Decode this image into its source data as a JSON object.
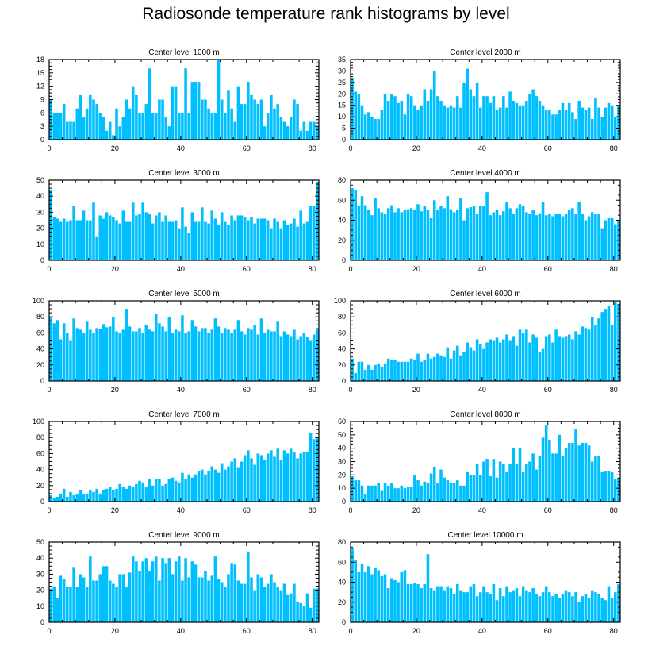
{
  "title": "Radiosonde temperature rank histograms by level",
  "colors": {
    "bar": "#00bfff",
    "axis": "#000000",
    "background": "#ffffff"
  },
  "chart_data": [
    {
      "type": "bar",
      "title": "Center level 1000 m",
      "xlim": [
        0,
        82
      ],
      "ylim": [
        0,
        18
      ],
      "xticks": [
        0,
        20,
        40,
        60,
        80
      ],
      "yticks": [
        0,
        3,
        6,
        9,
        12,
        15,
        18
      ],
      "categories_start": 1,
      "values": [
        9,
        6,
        6,
        6,
        8,
        4,
        4,
        4,
        7,
        10,
        5,
        7,
        10,
        9,
        8,
        6,
        5,
        2,
        4,
        1,
        7,
        3,
        5,
        9,
        7,
        12,
        10,
        6,
        6,
        8,
        16,
        6,
        6,
        9,
        9,
        5,
        3,
        12,
        12,
        6,
        6,
        16,
        6,
        13,
        13,
        13,
        9,
        9,
        7,
        6,
        6,
        18,
        9,
        6,
        11,
        7,
        4,
        12,
        8,
        8,
        13,
        10,
        9,
        8,
        9,
        3,
        6,
        10,
        7,
        8,
        5,
        4,
        3,
        5,
        9,
        8,
        2,
        4,
        2,
        4,
        4,
        3
      ]
    },
    {
      "type": "bar",
      "title": "Center level 2000 m",
      "xlim": [
        0,
        82
      ],
      "ylim": [
        0,
        35
      ],
      "xticks": [
        0,
        20,
        40,
        60,
        80
      ],
      "yticks": [
        0,
        5,
        10,
        15,
        20,
        25,
        30,
        35
      ],
      "categories_start": 1,
      "values": [
        27,
        21,
        20,
        15,
        11,
        12,
        10,
        9,
        9,
        13,
        20,
        17,
        20,
        19,
        16,
        17,
        11,
        20,
        19,
        15,
        13,
        15,
        22,
        17,
        22,
        30,
        19,
        17,
        15,
        14,
        15,
        14,
        19,
        14,
        25,
        31,
        22,
        19,
        25,
        14,
        19,
        19,
        16,
        19,
        13,
        14,
        19,
        14,
        21,
        17,
        16,
        15,
        15,
        17,
        20,
        22,
        19,
        17,
        15,
        13,
        13,
        11,
        11,
        13,
        16,
        13,
        16,
        12,
        9,
        17,
        14,
        13,
        14,
        9,
        18,
        14,
        10,
        14,
        16,
        15,
        10,
        15
      ]
    },
    {
      "type": "bar",
      "title": "Center level 3000 m",
      "xlim": [
        0,
        82
      ],
      "ylim": [
        0,
        50
      ],
      "xticks": [
        0,
        20,
        40,
        60,
        80
      ],
      "yticks": [
        0,
        10,
        20,
        30,
        40,
        50
      ],
      "categories_start": 1,
      "values": [
        44,
        27,
        26,
        24,
        26,
        24,
        25,
        34,
        25,
        25,
        31,
        25,
        25,
        36,
        15,
        28,
        26,
        30,
        28,
        27,
        25,
        23,
        31,
        24,
        24,
        36,
        28,
        29,
        36,
        30,
        29,
        23,
        28,
        30,
        24,
        28,
        24,
        24,
        25,
        20,
        33,
        21,
        17,
        30,
        24,
        24,
        33,
        24,
        23,
        31,
        26,
        22,
        30,
        24,
        22,
        28,
        25,
        28,
        28,
        27,
        25,
        27,
        23,
        26,
        26,
        26,
        25,
        20,
        26,
        24,
        20,
        25,
        22,
        23,
        26,
        21,
        31,
        23,
        24,
        34,
        34,
        49
      ]
    },
    {
      "type": "bar",
      "title": "Center level 4000 m",
      "xlim": [
        0,
        82
      ],
      "ylim": [
        0,
        80
      ],
      "xticks": [
        0,
        20,
        40,
        60,
        80
      ],
      "yticks": [
        0,
        20,
        40,
        60,
        80
      ],
      "categories_start": 1,
      "values": [
        72,
        70,
        54,
        64,
        55,
        50,
        45,
        62,
        52,
        48,
        46,
        52,
        55,
        48,
        52,
        48,
        50,
        51,
        52,
        50,
        56,
        49,
        54,
        50,
        42,
        60,
        50,
        54,
        52,
        64,
        51,
        48,
        50,
        62,
        40,
        52,
        53,
        54,
        46,
        54,
        54,
        68,
        45,
        48,
        50,
        45,
        49,
        58,
        52,
        46,
        52,
        56,
        54,
        48,
        46,
        50,
        45,
        47,
        58,
        45,
        46,
        44,
        46,
        46,
        44,
        46,
        50,
        52,
        46,
        58,
        46,
        40,
        44,
        48,
        46,
        46,
        32,
        40,
        42,
        42,
        36,
        39
      ]
    },
    {
      "type": "bar",
      "title": "Center level 5000 m",
      "xlim": [
        0,
        82
      ],
      "ylim": [
        0,
        100
      ],
      "xticks": [
        0,
        20,
        40,
        60,
        80
      ],
      "yticks": [
        0,
        20,
        40,
        60,
        80,
        100
      ],
      "categories_start": 1,
      "values": [
        80,
        72,
        76,
        52,
        72,
        60,
        50,
        78,
        66,
        64,
        60,
        74,
        64,
        60,
        66,
        65,
        71,
        67,
        68,
        80,
        62,
        60,
        64,
        90,
        68,
        62,
        62,
        66,
        60,
        70,
        64,
        62,
        84,
        72,
        68,
        62,
        80,
        60,
        64,
        62,
        82,
        60,
        62,
        76,
        68,
        62,
        66,
        66,
        60,
        64,
        78,
        68,
        60,
        66,
        64,
        60,
        64,
        76,
        62,
        58,
        66,
        64,
        70,
        58,
        78,
        60,
        64,
        62,
        62,
        74,
        56,
        62,
        58,
        56,
        64,
        52,
        56,
        60,
        55,
        50,
        58,
        66
      ]
    },
    {
      "type": "bar",
      "title": "Center level 6000 m",
      "xlim": [
        0,
        82
      ],
      "ylim": [
        0,
        100
      ],
      "xticks": [
        0,
        20,
        40,
        60,
        80
      ],
      "yticks": [
        0,
        20,
        40,
        60,
        80,
        100
      ],
      "categories_start": 1,
      "values": [
        28,
        10,
        24,
        24,
        14,
        20,
        14,
        20,
        22,
        18,
        22,
        28,
        26,
        26,
        24,
        24,
        24,
        24,
        28,
        26,
        34,
        24,
        26,
        34,
        28,
        30,
        34,
        32,
        30,
        42,
        28,
        38,
        44,
        32,
        36,
        48,
        42,
        38,
        52,
        46,
        40,
        48,
        52,
        50,
        54,
        48,
        52,
        58,
        50,
        56,
        44,
        64,
        60,
        64,
        48,
        58,
        54,
        36,
        40,
        56,
        58,
        48,
        64,
        56,
        54,
        56,
        58,
        52,
        62,
        58,
        68,
        66,
        64,
        80,
        70,
        78,
        86,
        90,
        94,
        70,
        98,
        96
      ]
    },
    {
      "type": "bar",
      "title": "Center level 7000 m",
      "xlim": [
        0,
        82
      ],
      "ylim": [
        0,
        100
      ],
      "xticks": [
        0,
        20,
        40,
        60,
        80
      ],
      "yticks": [
        0,
        20,
        40,
        60,
        80,
        100
      ],
      "categories_start": 1,
      "values": [
        8,
        4,
        6,
        10,
        16,
        6,
        12,
        8,
        10,
        14,
        10,
        10,
        14,
        12,
        16,
        10,
        14,
        16,
        18,
        14,
        16,
        22,
        18,
        16,
        20,
        18,
        22,
        26,
        24,
        18,
        28,
        20,
        28,
        28,
        20,
        22,
        28,
        30,
        26,
        24,
        36,
        28,
        34,
        30,
        34,
        38,
        40,
        34,
        38,
        44,
        40,
        36,
        48,
        40,
        44,
        50,
        54,
        42,
        50,
        58,
        64,
        54,
        46,
        60,
        58,
        52,
        60,
        64,
        56,
        66,
        52,
        64,
        60,
        66,
        62,
        54,
        60,
        62,
        62,
        86,
        78,
        80
      ]
    },
    {
      "type": "bar",
      "title": "Center level 8000 m",
      "xlim": [
        0,
        82
      ],
      "ylim": [
        0,
        60
      ],
      "xticks": [
        0,
        20,
        40,
        60,
        80
      ],
      "yticks": [
        0,
        10,
        20,
        30,
        40,
        50,
        60
      ],
      "categories_start": 1,
      "values": [
        19,
        16,
        16,
        12,
        6,
        12,
        12,
        12,
        14,
        8,
        14,
        12,
        14,
        10,
        10,
        12,
        10,
        11,
        11,
        20,
        16,
        12,
        15,
        14,
        21,
        26,
        14,
        24,
        18,
        16,
        14,
        14,
        16,
        12,
        12,
        22,
        20,
        20,
        28,
        20,
        30,
        32,
        19,
        32,
        18,
        30,
        28,
        22,
        28,
        40,
        28,
        40,
        22,
        28,
        30,
        36,
        24,
        34,
        48,
        57,
        46,
        36,
        36,
        50,
        34,
        40,
        44,
        44,
        54,
        42,
        44,
        44,
        42,
        30,
        34,
        34,
        22,
        23,
        23,
        22,
        17,
        18
      ]
    },
    {
      "type": "bar",
      "title": "Center level 9000 m",
      "xlim": [
        0,
        82
      ],
      "ylim": [
        0,
        50
      ],
      "xticks": [
        0,
        20,
        40,
        60,
        80
      ],
      "yticks": [
        0,
        10,
        20,
        30,
        40,
        50
      ],
      "categories_start": 1,
      "values": [
        21,
        22,
        15,
        29,
        27,
        22,
        22,
        34,
        22,
        30,
        28,
        22,
        41,
        26,
        26,
        30,
        35,
        35,
        26,
        24,
        22,
        30,
        30,
        22,
        31,
        41,
        38,
        32,
        38,
        40,
        32,
        38,
        41,
        26,
        40,
        37,
        40,
        30,
        38,
        41,
        26,
        40,
        28,
        38,
        36,
        28,
        28,
        32,
        26,
        29,
        41,
        27,
        25,
        22,
        30,
        37,
        36,
        26,
        24,
        24,
        44,
        28,
        20,
        30,
        28,
        22,
        24,
        30,
        25,
        22,
        20,
        24,
        17,
        18,
        24,
        13,
        12,
        10,
        18,
        9,
        21,
        21
      ]
    },
    {
      "type": "bar",
      "title": "Center level 10000 m",
      "xlim": [
        0,
        82
      ],
      "ylim": [
        0,
        80
      ],
      "xticks": [
        0,
        20,
        40,
        60,
        80
      ],
      "yticks": [
        0,
        20,
        40,
        60,
        80
      ],
      "categories_start": 1,
      "values": [
        74,
        62,
        50,
        58,
        50,
        56,
        48,
        54,
        52,
        46,
        48,
        34,
        44,
        42,
        40,
        50,
        52,
        38,
        38,
        39,
        38,
        34,
        38,
        68,
        34,
        32,
        36,
        36,
        32,
        36,
        34,
        28,
        38,
        32,
        30,
        30,
        36,
        38,
        26,
        30,
        36,
        30,
        28,
        38,
        22,
        34,
        26,
        36,
        30,
        32,
        34,
        26,
        36,
        32,
        30,
        34,
        28,
        26,
        30,
        36,
        30,
        26,
        28,
        24,
        28,
        32,
        30,
        26,
        30,
        20,
        26,
        28,
        24,
        32,
        30,
        28,
        24,
        22,
        36,
        24,
        30,
        38
      ]
    }
  ]
}
